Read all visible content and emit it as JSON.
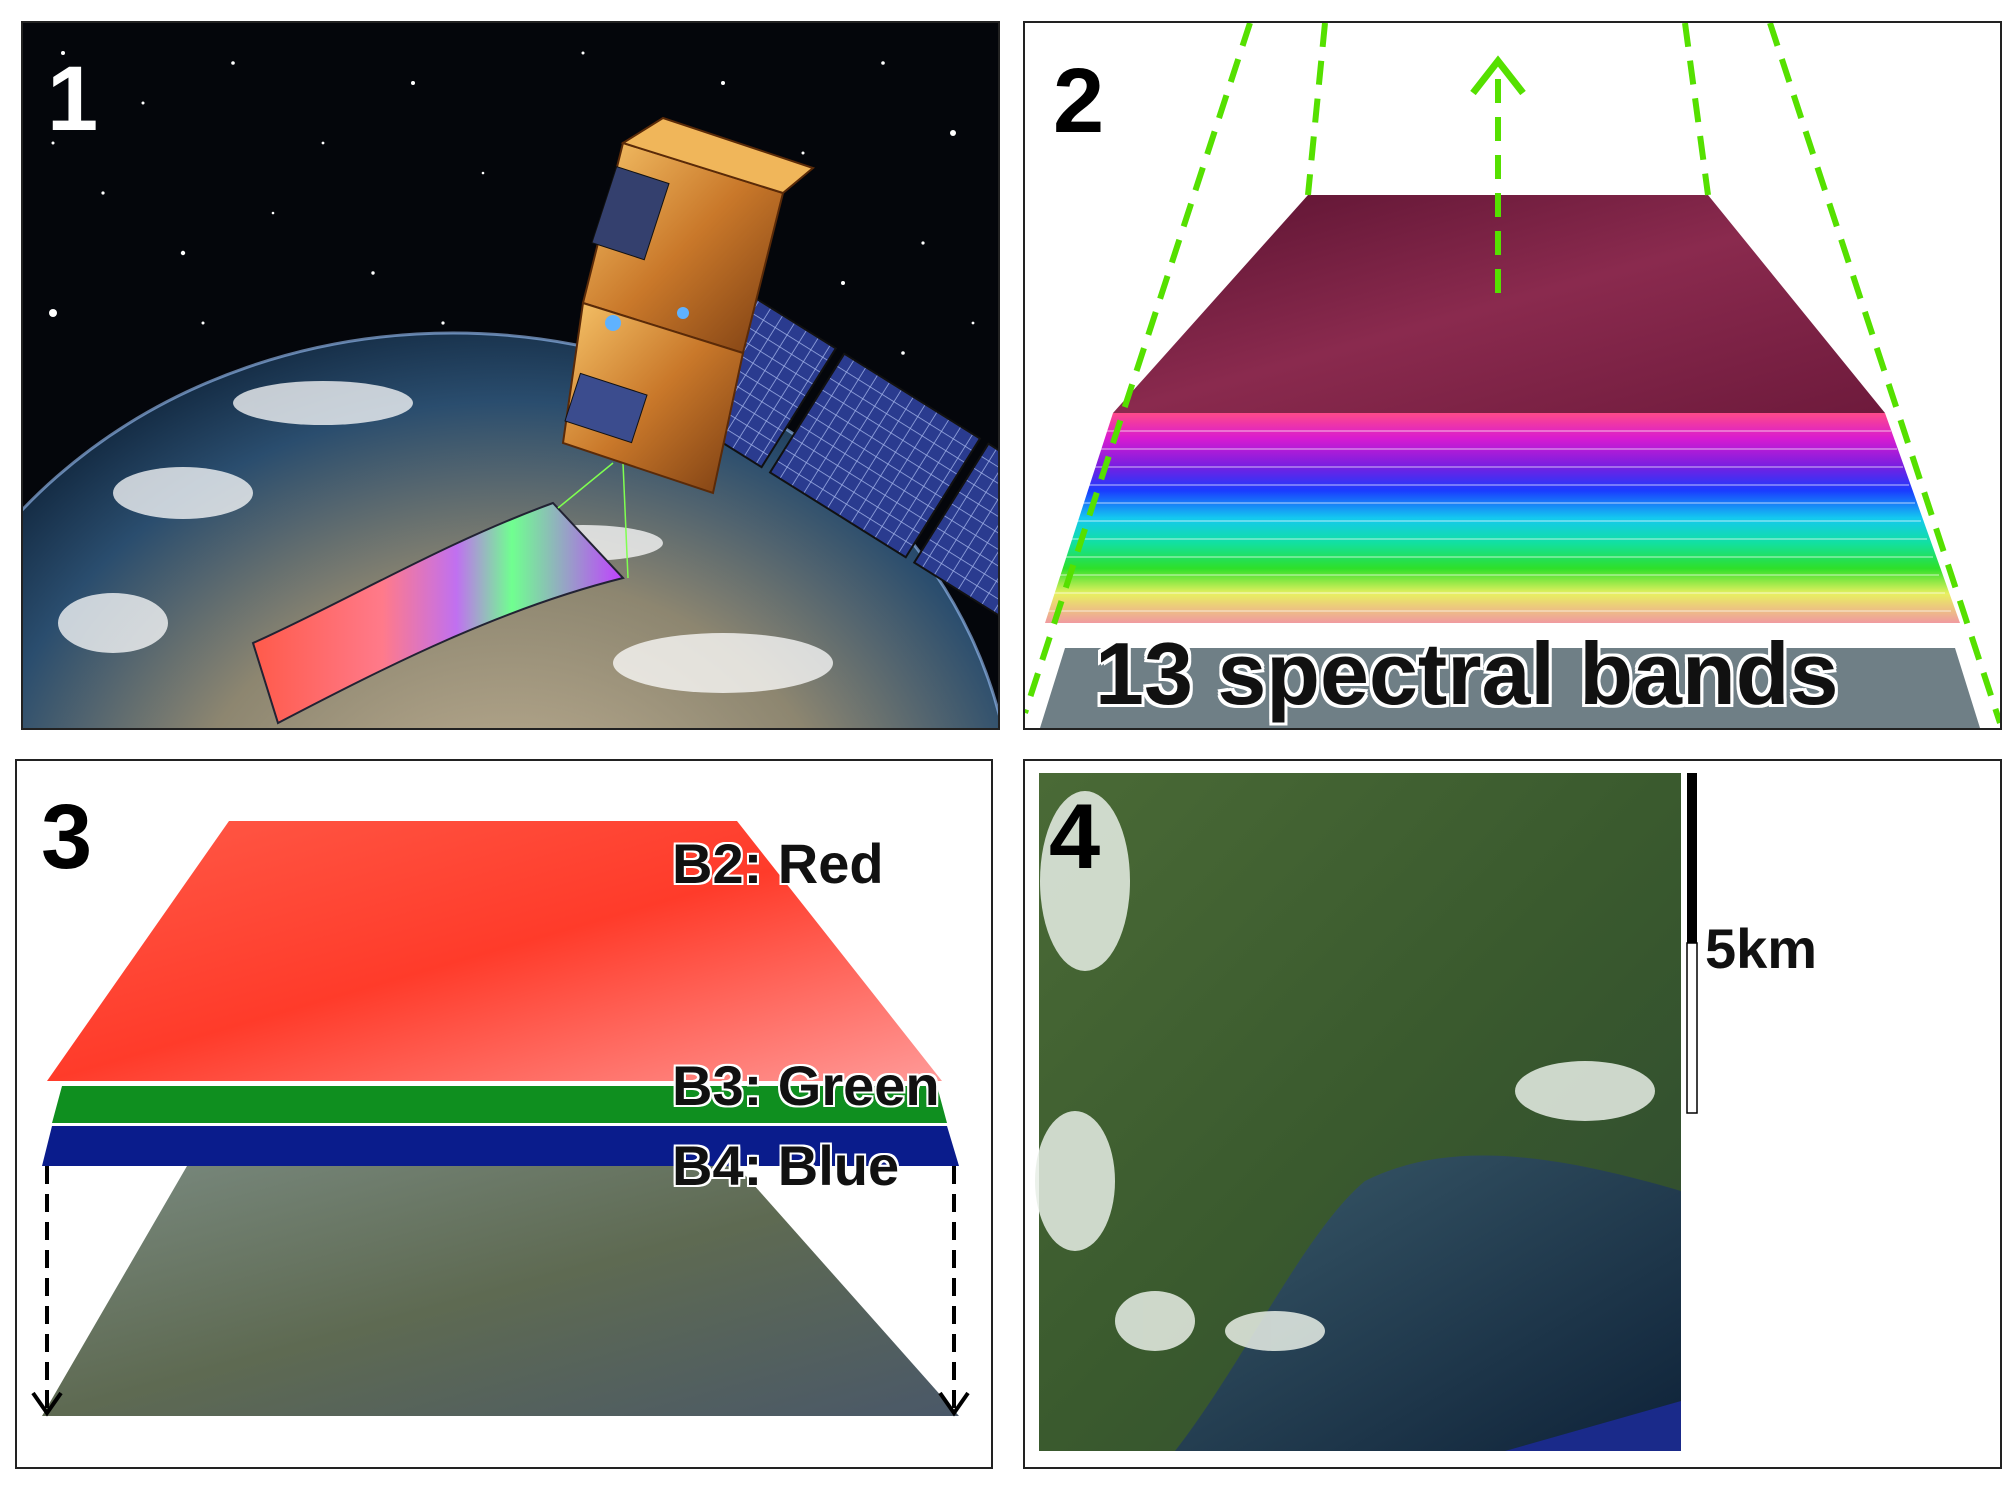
{
  "panels": [
    {
      "number": "1"
    },
    {
      "number": "2",
      "label": "13 spectral bands"
    },
    {
      "number": "3",
      "bands": [
        "B2: Red",
        "B3: Green",
        "B4: Blue"
      ]
    },
    {
      "number": "4",
      "scale_label": "5km"
    }
  ],
  "colors": {
    "accent_dashed": "#55e000",
    "band_red": "#ff3b2a",
    "band_green": "#0f8f1f",
    "band_blue": "#0a1c8c",
    "panel_border": "#222222"
  },
  "icons": [
    "satellite-icon",
    "earth-globe-icon",
    "arrow-up-icon",
    "arrow-down-icon",
    "scale-bar-icon"
  ]
}
